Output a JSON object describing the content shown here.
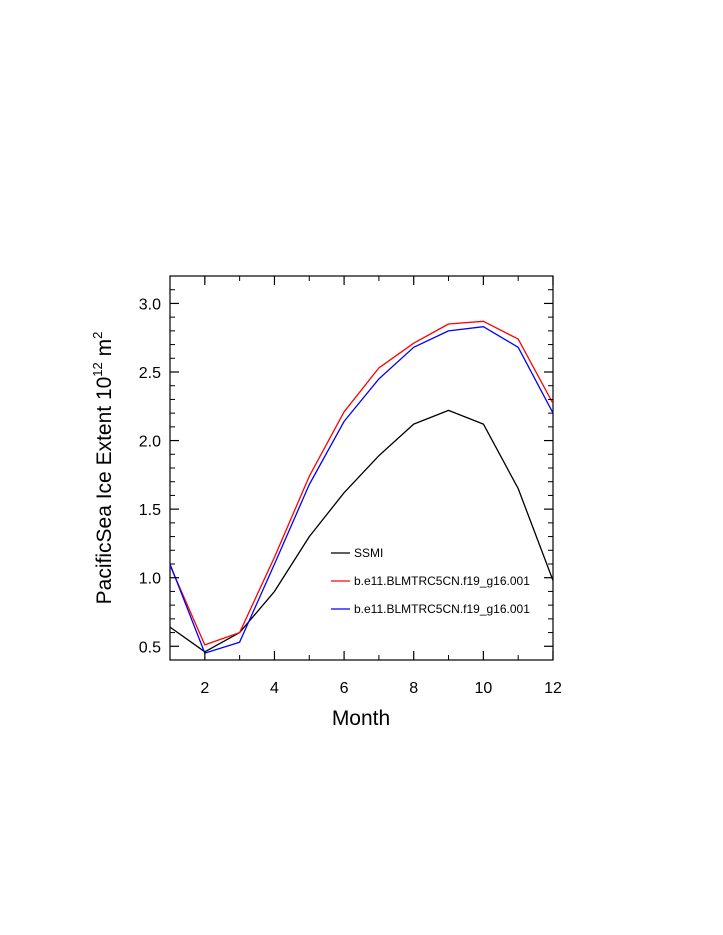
{
  "chart_data": {
    "type": "line",
    "xlabel": "Month",
    "ylabel": {
      "text": "PacificSea Ice Extent 10",
      "exp1": "12",
      "unit": " m",
      "exp2": "2"
    },
    "xlim": [
      1,
      12
    ],
    "ylim": [
      0.4,
      3.2
    ],
    "xticks": [
      2,
      4,
      6,
      8,
      10,
      12
    ],
    "xtick_labels": [
      "2",
      "4",
      "6",
      "8",
      "10",
      "12"
    ],
    "yticks": [
      0.5,
      1.0,
      1.5,
      2.0,
      2.5,
      3.0
    ],
    "ytick_labels": [
      "0.5",
      "1.0",
      "1.5",
      "2.0",
      "2.5",
      "3.0"
    ],
    "x": [
      1,
      2,
      3,
      4,
      5,
      6,
      7,
      8,
      9,
      10,
      11,
      12
    ],
    "series": [
      {
        "name": "SSMI",
        "color": "#000000",
        "values": [
          0.64,
          0.46,
          0.6,
          0.9,
          1.3,
          1.62,
          1.89,
          2.12,
          2.22,
          2.12,
          1.65,
          0.98
        ]
      },
      {
        "name": "b.e11.BLMTRC5CN.f19_g16.001",
        "color": "#ff0000",
        "values": [
          1.09,
          0.51,
          0.6,
          1.15,
          1.74,
          2.21,
          2.53,
          2.71,
          2.85,
          2.87,
          2.74,
          2.27
        ]
      },
      {
        "name": "b.e11.BLMTRC5CN.f19_g16.001",
        "color": "#0000ff",
        "values": [
          1.1,
          0.45,
          0.53,
          1.1,
          1.68,
          2.14,
          2.45,
          2.68,
          2.8,
          2.83,
          2.68,
          2.2
        ]
      }
    ],
    "legend_position": "lower-right inside plot",
    "grid": false
  }
}
